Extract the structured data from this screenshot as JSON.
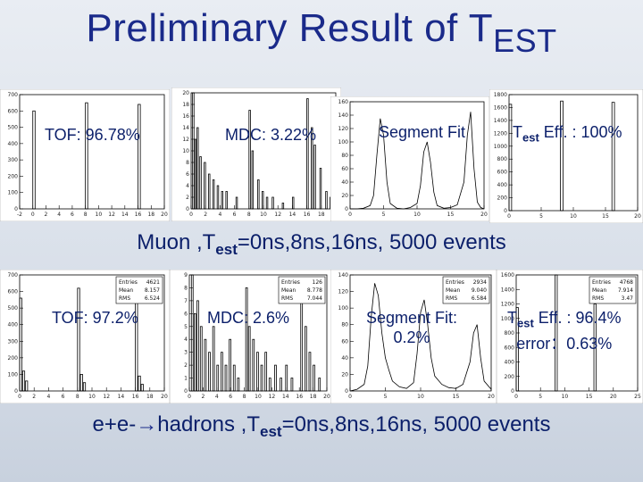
{
  "title": {
    "main": "Preliminary Result of T",
    "sub": "EST"
  },
  "captions": {
    "row1": {
      "pre": "Muon ,T",
      "sub": "est",
      "post": "=0ns,8ns,16ns, 5000 events"
    },
    "row2": {
      "pre": "e+e-",
      "arrow": "→",
      "mid": "hadrons ,T",
      "sub": "est",
      "post": "=0ns,8ns,16ns, 5000 events"
    }
  },
  "labels": {
    "r1_tof": "TOF: 96.78%",
    "r1_mdc": "MDC: 3.22%",
    "r1_seg": "Segment  Fit",
    "r1_eff_pre": "T",
    "r1_eff_sub": "est",
    "r1_eff_post": " Eff. : 100%",
    "r2_tof": "TOF: 97.2%",
    "r2_mdc": "MDC: 2.6%",
    "r2_seg_l1": "Segment  Fit:",
    "r2_seg_l2": "0.2%",
    "r2_eff_pre": "T",
    "r2_eff_sub": "est",
    "r2_eff_post": " Eff. : 96.4%",
    "r2_eff_l2": "error：0.63%"
  },
  "stats": {
    "r2_p1": [
      [
        "Entries",
        "4621"
      ],
      [
        "Mean",
        "8.157"
      ],
      [
        "RMS",
        "6.524"
      ]
    ],
    "r2_p2": [
      [
        "Entries",
        "126"
      ],
      [
        "Mean",
        "8.778"
      ],
      [
        "RMS",
        "7.044"
      ]
    ],
    "r2_p3": [
      [
        "Entries",
        "2934"
      ],
      [
        "Mean",
        "9.040"
      ],
      [
        "RMS",
        "6.584"
      ]
    ],
    "r2_p4": [
      [
        "Entries",
        "4768"
      ],
      [
        "Mean",
        "7.914"
      ],
      [
        "RMS",
        "3.47"
      ]
    ]
  },
  "chart_data": [
    {
      "type": "bar",
      "id": "r1_p1",
      "ylim": [
        0,
        700
      ],
      "yticks": [
        0,
        100,
        200,
        300,
        400,
        500,
        600,
        700
      ],
      "xlim": [
        -2,
        20
      ],
      "xticks": [
        -2,
        0,
        2,
        4,
        6,
        8,
        10,
        12,
        14,
        16,
        18,
        20
      ],
      "bins": [
        [
          0,
          600
        ],
        [
          8,
          650
        ],
        [
          16,
          640
        ]
      ],
      "bin_width": 0.35
    },
    {
      "type": "bar",
      "id": "r1_p2",
      "ylim": [
        0,
        20
      ],
      "yticks": [
        0,
        2,
        4,
        6,
        8,
        10,
        12,
        14,
        16,
        18,
        20
      ],
      "xlim": [
        0,
        20
      ],
      "xticks": [
        0,
        2,
        4,
        6,
        8,
        10,
        12,
        14,
        16,
        18,
        20
      ],
      "bins": [
        [
          0.2,
          20
        ],
        [
          0.5,
          12
        ],
        [
          0.8,
          14
        ],
        [
          1.2,
          9
        ],
        [
          1.8,
          8
        ],
        [
          2.4,
          6
        ],
        [
          3,
          5
        ],
        [
          3.6,
          4
        ],
        [
          4.2,
          3
        ],
        [
          4.8,
          3
        ],
        [
          6.2,
          2
        ],
        [
          8,
          17
        ],
        [
          8.4,
          10
        ],
        [
          9.2,
          5
        ],
        [
          9.8,
          3
        ],
        [
          10.4,
          2
        ],
        [
          11.2,
          2
        ],
        [
          12.6,
          1
        ],
        [
          14,
          2
        ],
        [
          16,
          19
        ],
        [
          16.6,
          14
        ],
        [
          17,
          11
        ],
        [
          17.8,
          7
        ],
        [
          18.6,
          3
        ],
        [
          19.2,
          2
        ]
      ],
      "bin_width": 0.2
    },
    {
      "type": "line",
      "id": "r1_p3",
      "ylim": [
        0,
        160
      ],
      "yticks": [
        0,
        20,
        40,
        60,
        80,
        100,
        120,
        140,
        160
      ],
      "xlim": [
        0,
        20
      ],
      "xticks": [
        0,
        5,
        10,
        15,
        20
      ],
      "x": [
        0,
        1,
        2,
        3,
        3.5,
        4,
        4.5,
        5,
        5.5,
        6,
        7,
        8,
        9,
        10,
        10.5,
        11,
        11.5,
        12,
        12.5,
        13,
        14,
        15,
        16,
        17,
        17.5,
        18,
        18.5,
        19,
        19.5,
        20
      ],
      "y": [
        0,
        0,
        1,
        5,
        20,
        80,
        135,
        110,
        40,
        8,
        1,
        0,
        2,
        8,
        35,
        85,
        100,
        70,
        25,
        5,
        1,
        2,
        6,
        40,
        110,
        145,
        60,
        10,
        2,
        0
      ]
    },
    {
      "type": "bar",
      "id": "r1_p4",
      "ylim": [
        0,
        1800
      ],
      "yticks": [
        0,
        200,
        400,
        600,
        800,
        1000,
        1200,
        1400,
        1600,
        1800
      ],
      "xlim": [
        0,
        20
      ],
      "xticks": [
        0,
        5,
        10,
        15,
        20
      ],
      "bins": [
        [
          0,
          1650
        ],
        [
          8,
          1700
        ],
        [
          16,
          1680
        ]
      ],
      "bin_width": 0.4
    },
    {
      "type": "bar",
      "id": "r2_p1",
      "ylim": [
        0,
        700
      ],
      "yticks": [
        0,
        100,
        200,
        300,
        400,
        500,
        600,
        700
      ],
      "xlim": [
        0,
        20
      ],
      "xticks": [
        0,
        2,
        4,
        6,
        8,
        10,
        12,
        14,
        16,
        18,
        20
      ],
      "bins": [
        [
          0,
          560
        ],
        [
          0.4,
          120
        ],
        [
          0.8,
          60
        ],
        [
          8,
          620
        ],
        [
          8.4,
          100
        ],
        [
          8.8,
          50
        ],
        [
          16,
          600
        ],
        [
          16.4,
          90
        ],
        [
          16.8,
          40
        ]
      ],
      "bin_width": 0.3
    },
    {
      "type": "bar",
      "id": "r2_p2",
      "ylim": [
        0,
        9
      ],
      "yticks": [
        0,
        1,
        2,
        3,
        4,
        5,
        6,
        7,
        8,
        9
      ],
      "xlim": [
        0,
        20
      ],
      "xticks": [
        0,
        2,
        4,
        6,
        8,
        10,
        12,
        14,
        16,
        18,
        20
      ],
      "bins": [
        [
          0.3,
          9
        ],
        [
          0.7,
          6
        ],
        [
          1.1,
          7
        ],
        [
          1.6,
          5
        ],
        [
          2.2,
          4
        ],
        [
          2.8,
          3
        ],
        [
          3.4,
          5
        ],
        [
          4,
          2
        ],
        [
          4.6,
          3
        ],
        [
          5.2,
          2
        ],
        [
          5.8,
          4
        ],
        [
          6.4,
          2
        ],
        [
          7,
          1
        ],
        [
          8.2,
          8
        ],
        [
          8.6,
          5
        ],
        [
          9.2,
          4
        ],
        [
          9.8,
          3
        ],
        [
          10.4,
          2
        ],
        [
          11,
          3
        ],
        [
          11.6,
          1
        ],
        [
          12.4,
          2
        ],
        [
          13.2,
          1
        ],
        [
          14,
          2
        ],
        [
          14.8,
          1
        ],
        [
          16.2,
          7
        ],
        [
          16.8,
          5
        ],
        [
          17.4,
          3
        ],
        [
          18,
          2
        ],
        [
          18.8,
          1
        ]
      ],
      "bin_width": 0.25
    },
    {
      "type": "line",
      "id": "r2_p3",
      "ylim": [
        0,
        140
      ],
      "yticks": [
        0,
        20,
        40,
        60,
        80,
        100,
        120,
        140
      ],
      "xlim": [
        0,
        20
      ],
      "xticks": [
        0,
        5,
        10,
        15,
        20
      ],
      "x": [
        0,
        1,
        2,
        2.5,
        3,
        3.5,
        4,
        4.5,
        5,
        5.5,
        6,
        7,
        8,
        9,
        9.5,
        10,
        10.5,
        11,
        11.5,
        12,
        13,
        14,
        15,
        16,
        17,
        17.5,
        18,
        18.5,
        19,
        20
      ],
      "y": [
        0,
        2,
        8,
        30,
        90,
        130,
        115,
        70,
        40,
        25,
        12,
        5,
        3,
        10,
        45,
        95,
        110,
        80,
        40,
        18,
        8,
        4,
        3,
        8,
        35,
        70,
        80,
        40,
        12,
        2
      ]
    },
    {
      "type": "bar",
      "id": "r2_p4",
      "ylim": [
        0,
        1600
      ],
      "yticks": [
        0,
        200,
        400,
        600,
        800,
        1000,
        1200,
        1400,
        1600
      ],
      "xlim": [
        0,
        25
      ],
      "xticks": [
        0,
        5,
        10,
        15,
        20,
        25
      ],
      "bins": [
        [
          0,
          1150
        ],
        [
          8,
          1600
        ],
        [
          16,
          1200
        ]
      ],
      "bin_width": 0.45
    }
  ]
}
